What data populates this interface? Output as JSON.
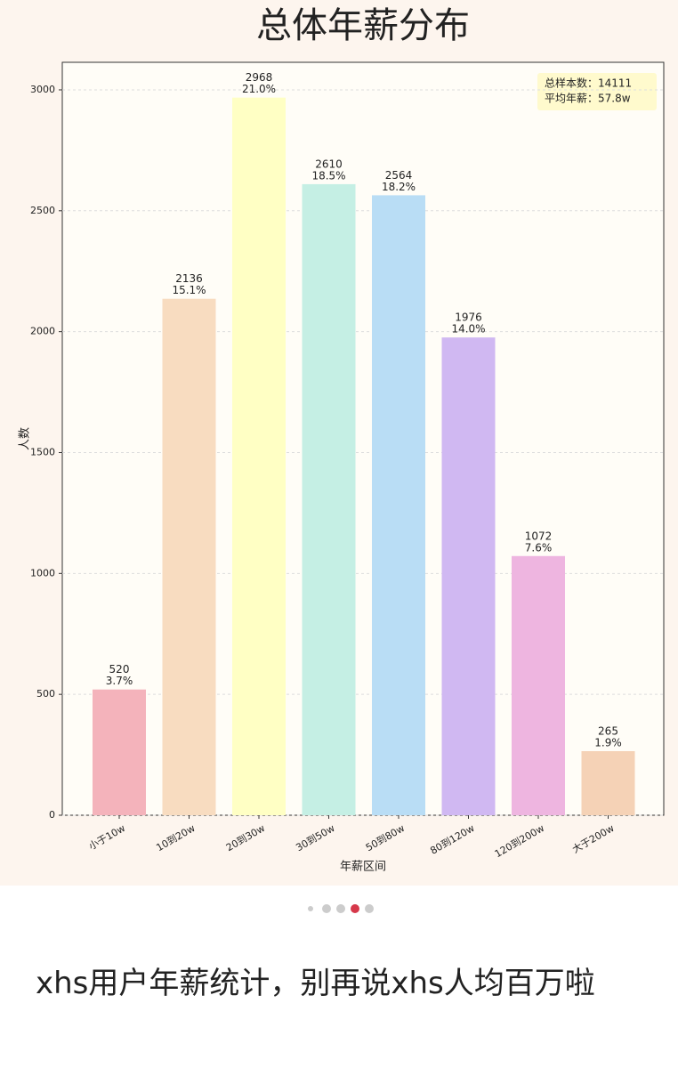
{
  "chart_data": {
    "type": "bar",
    "title": "总体年薪分布",
    "x_label": "年薪区间",
    "y_label": "人数",
    "categories": [
      "小于10w",
      "10到20w",
      "20到30w",
      "30到50w",
      "50到80w",
      "80到120w",
      "120到200w",
      "大于200w"
    ],
    "values": [
      520,
      2136,
      2968,
      2610,
      2564,
      1976,
      1072,
      265
    ],
    "shares": {
      "values": [
        3.7,
        15.1,
        21.0,
        18.5,
        18.2,
        14.0,
        7.6,
        1.9
      ],
      "value_labels": [
        "3.7%",
        "15.1%",
        "21.0%",
        "18.5%",
        "18.2%",
        "14.0%",
        "7.6%",
        "1.9%"
      ]
    },
    "colors": [
      "#f4b3bb",
      "#f8dcc0",
      "#ffffc4",
      "#c5efe4",
      "#b9ddf5",
      "#d0b8f2",
      "#eeb5e0",
      "#f5d2b6"
    ],
    "ylim": [
      0,
      3114
    ],
    "yticks": [
      0,
      500,
      1000,
      1500,
      2000,
      2500,
      3000
    ],
    "grid": true,
    "annotation": [
      "总样本数：14111",
      "平均年薪：57.8w"
    ]
  },
  "caption": "xhs用户年薪统计，别再说xhs人均百万啦"
}
